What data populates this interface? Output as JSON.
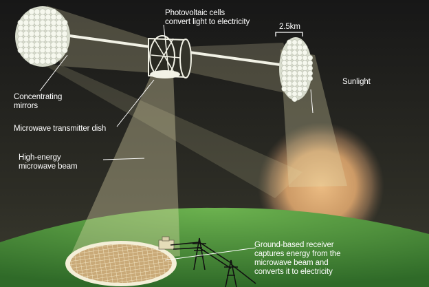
{
  "labels": {
    "photovoltaic": "Photovoltaic cells\nconvert light to electricity",
    "scale": "2.5km",
    "sunlight": "Sunlight",
    "concentrating_mirrors": "Concentrating\nmirrors",
    "transmitter": "Microwave transmitter dish",
    "beam": "High-energy\nmicrowave beam",
    "receiver": "Ground-based receiver\ncaptures energy from the\nmicrowave beam and\nconverts it to electricity"
  },
  "colors": {
    "sky_top": "#181818",
    "sky_bottom": "#3a3a30",
    "beam": "#e8e2b0",
    "sun": "#f0b878",
    "ground": "#5fa24a",
    "mirror": "#f2f4ea",
    "text": "#ffffff"
  }
}
